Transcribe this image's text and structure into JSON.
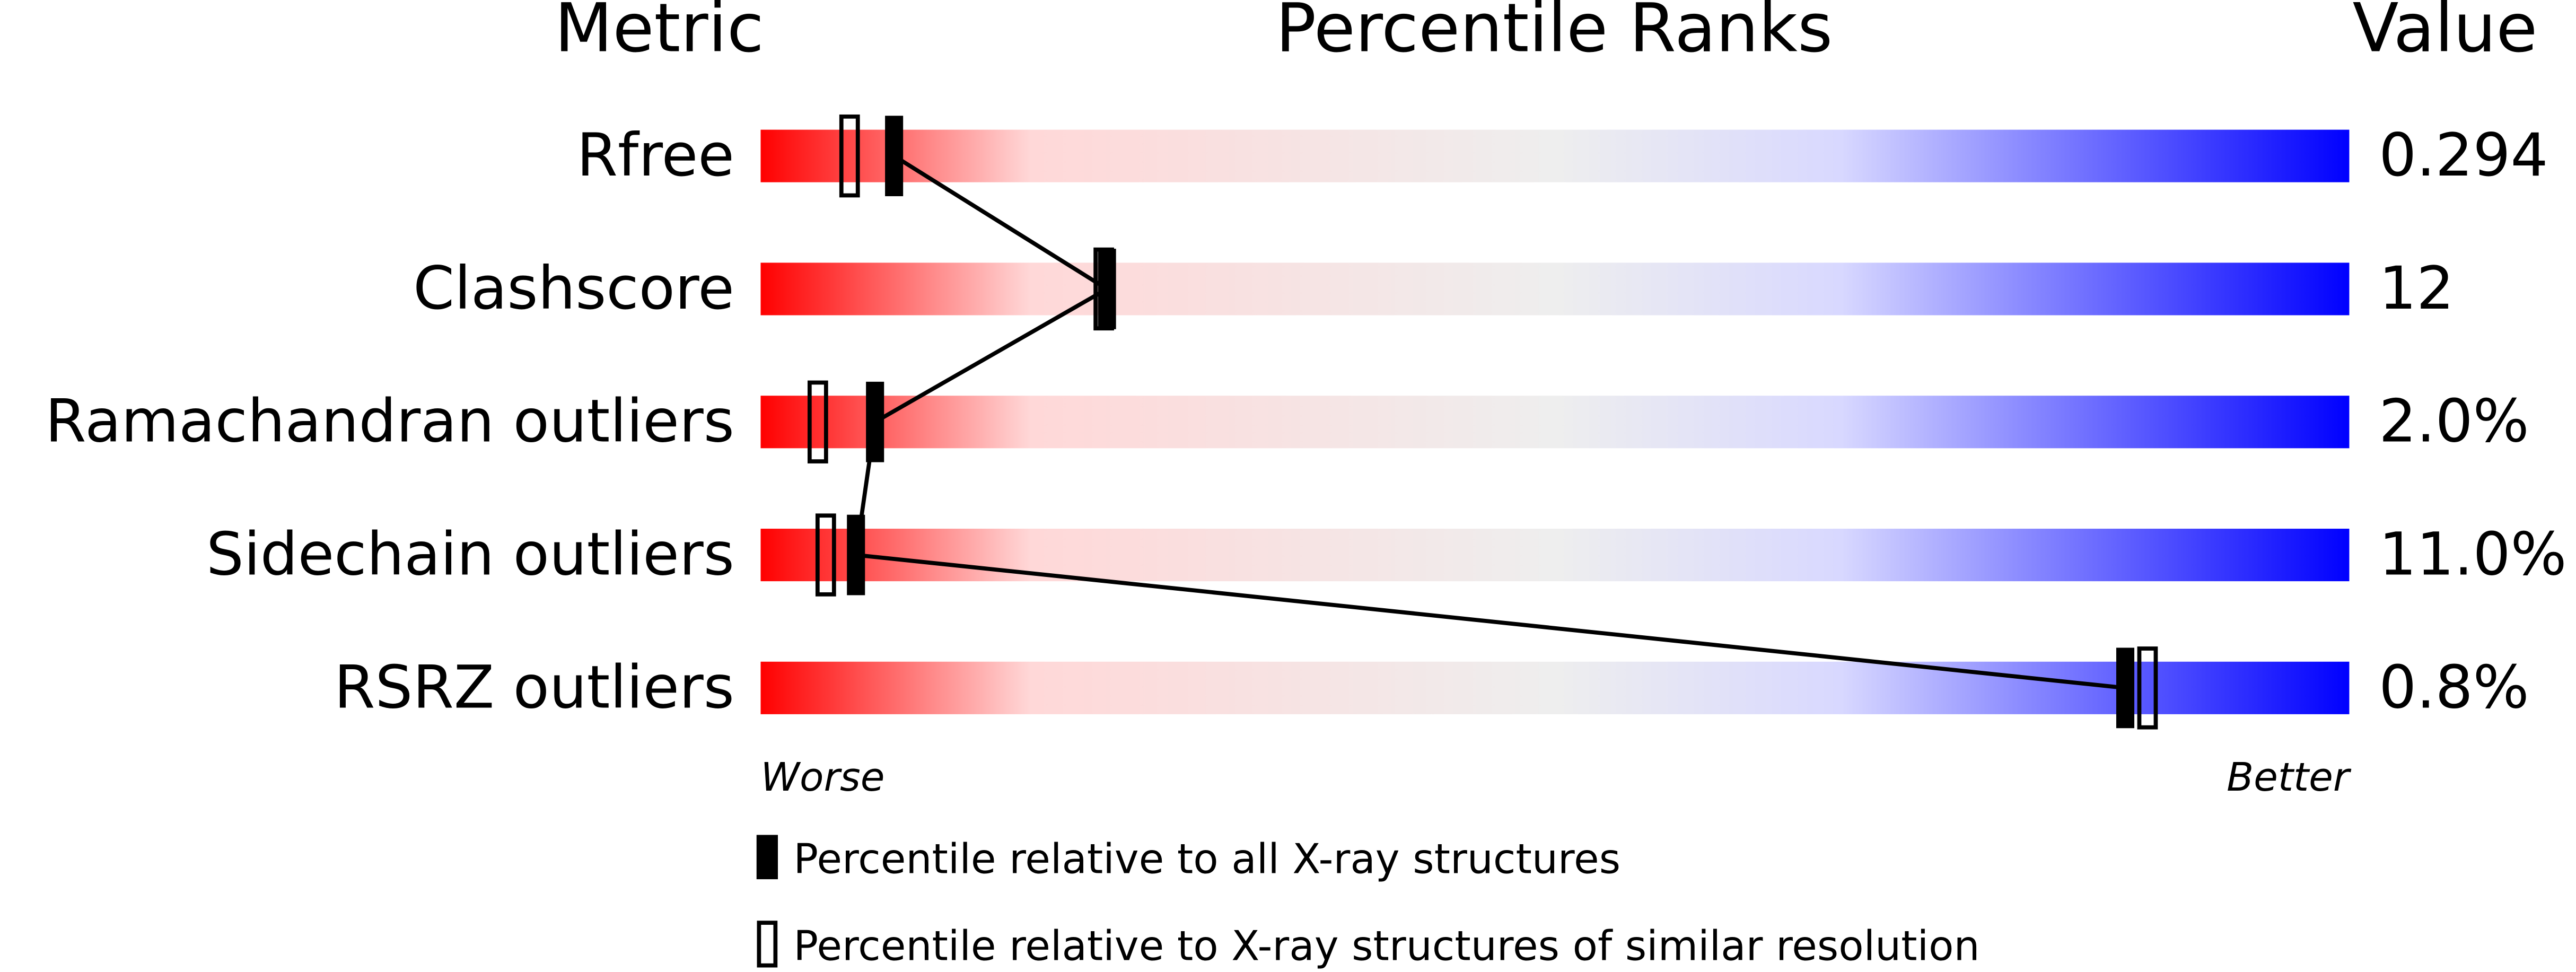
{
  "chart_data": {
    "type": "percentile_slider",
    "title": "Percentile Ranks",
    "column_headers": {
      "metric": "Metric",
      "value": "Value"
    },
    "categories": [
      "Rfree",
      "Clashscore",
      "Ramachandran outliers",
      "Sidechain outliers",
      "RSRZ outliers"
    ],
    "metric_values": [
      "0.294",
      "12",
      "2.0%",
      "11.0%",
      "0.8%"
    ],
    "series": [
      {
        "name": "Percentile relative to all X-ray structures",
        "color": "#000000",
        "style": "filled",
        "values": [
          8.4,
          21.8,
          7.2,
          6.0,
          85.9
        ]
      },
      {
        "name": "Percentile relative to X-ray structures of similar resolution",
        "color": "#000000",
        "style": "open",
        "values": [
          5.6,
          21.6,
          3.6,
          4.1,
          87.3
        ]
      }
    ],
    "xlim": [
      0,
      100
    ],
    "scale_labels": {
      "low": "Worse",
      "high": "Better"
    },
    "gradient": [
      "#ff0000",
      "#ffd8d8",
      "#eeeeee",
      "#d8d8ff",
      "#0000ff"
    ]
  }
}
